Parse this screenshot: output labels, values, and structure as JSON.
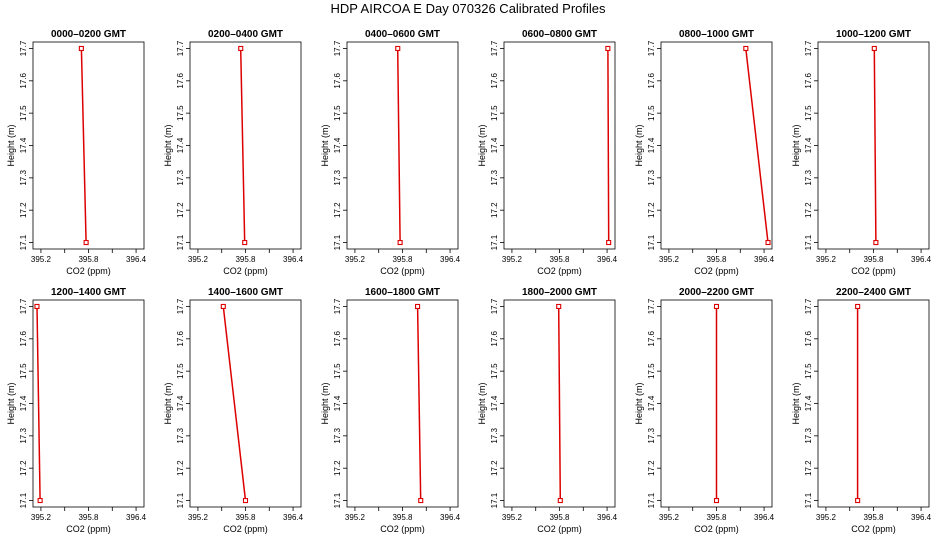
{
  "title": "HDP  AIRCOA E  Day 070326  Calibrated Profiles",
  "line_color": "#dd0000",
  "chart_data": [
    {
      "type": "line",
      "title": "0000–0200 GMT",
      "xlabel": "CO2 (ppm)",
      "ylabel": "Height (m)",
      "xlim": [
        395.1,
        396.5
      ],
      "ylim": [
        17.08,
        17.72
      ],
      "xticks": [
        395.2,
        395.8,
        396.4
      ],
      "yticks": [
        17.1,
        17.2,
        17.3,
        17.4,
        17.5,
        17.6,
        17.7
      ],
      "series": [
        {
          "x": [
            395.77,
            395.71
          ],
          "y": [
            17.1,
            17.7
          ]
        }
      ]
    },
    {
      "type": "line",
      "title": "0200–0400 GMT",
      "xlabel": "CO2 (ppm)",
      "ylabel": "Height (m)",
      "xlim": [
        395.1,
        396.5
      ],
      "ylim": [
        17.08,
        17.72
      ],
      "xticks": [
        395.2,
        395.8,
        396.4
      ],
      "yticks": [
        17.1,
        17.2,
        17.3,
        17.4,
        17.5,
        17.6,
        17.7
      ],
      "series": [
        {
          "x": [
            395.79,
            395.74
          ],
          "y": [
            17.1,
            17.7
          ]
        }
      ]
    },
    {
      "type": "line",
      "title": "0400–0600 GMT",
      "xlabel": "CO2 (ppm)",
      "ylabel": "Height (m)",
      "xlim": [
        395.1,
        396.5
      ],
      "ylim": [
        17.08,
        17.72
      ],
      "xticks": [
        395.2,
        395.8,
        396.4
      ],
      "yticks": [
        17.1,
        17.2,
        17.3,
        17.4,
        17.5,
        17.6,
        17.7
      ],
      "series": [
        {
          "x": [
            395.77,
            395.74
          ],
          "y": [
            17.1,
            17.7
          ]
        }
      ]
    },
    {
      "type": "line",
      "title": "0600–0800 GMT",
      "xlabel": "CO2 (ppm)",
      "ylabel": "Height (m)",
      "xlim": [
        395.1,
        396.5
      ],
      "ylim": [
        17.08,
        17.72
      ],
      "xticks": [
        395.2,
        395.8,
        396.4
      ],
      "yticks": [
        17.1,
        17.2,
        17.3,
        17.4,
        17.5,
        17.6,
        17.7
      ],
      "series": [
        {
          "x": [
            396.42,
            396.41
          ],
          "y": [
            17.1,
            17.7
          ]
        }
      ]
    },
    {
      "type": "line",
      "title": "0800–1000 GMT",
      "xlabel": "CO2 (ppm)",
      "ylabel": "Height (m)",
      "xlim": [
        395.1,
        396.5
      ],
      "ylim": [
        17.08,
        17.72
      ],
      "xticks": [
        395.2,
        395.8,
        396.4
      ],
      "yticks": [
        17.1,
        17.2,
        17.3,
        17.4,
        17.5,
        17.6,
        17.7
      ],
      "series": [
        {
          "x": [
            396.45,
            396.17
          ],
          "y": [
            17.1,
            17.7
          ]
        }
      ]
    },
    {
      "type": "line",
      "title": "1000–1200 GMT",
      "xlabel": "CO2 (ppm)",
      "ylabel": "Height (m)",
      "xlim": [
        395.1,
        396.5
      ],
      "ylim": [
        17.08,
        17.72
      ],
      "xticks": [
        395.2,
        395.8,
        396.4
      ],
      "yticks": [
        17.1,
        17.2,
        17.3,
        17.4,
        17.5,
        17.6,
        17.7
      ],
      "series": [
        {
          "x": [
            395.83,
            395.81
          ],
          "y": [
            17.1,
            17.7
          ]
        }
      ]
    },
    {
      "type": "line",
      "title": "1200–1400 GMT",
      "xlabel": "CO2 (ppm)",
      "ylabel": "Height (m)",
      "xlim": [
        395.1,
        396.5
      ],
      "ylim": [
        17.08,
        17.72
      ],
      "xticks": [
        395.2,
        395.8,
        396.4
      ],
      "yticks": [
        17.1,
        17.2,
        17.3,
        17.4,
        17.5,
        17.6,
        17.7
      ],
      "series": [
        {
          "x": [
            395.19,
            395.15
          ],
          "y": [
            17.1,
            17.7
          ]
        }
      ]
    },
    {
      "type": "line",
      "title": "1400–1600 GMT",
      "xlabel": "CO2 (ppm)",
      "ylabel": "Height (m)",
      "xlim": [
        395.1,
        396.5
      ],
      "ylim": [
        17.08,
        17.72
      ],
      "xticks": [
        395.2,
        395.8,
        396.4
      ],
      "yticks": [
        17.1,
        17.2,
        17.3,
        17.4,
        17.5,
        17.6,
        17.7
      ],
      "series": [
        {
          "x": [
            395.8,
            395.52
          ],
          "y": [
            17.1,
            17.7
          ]
        }
      ]
    },
    {
      "type": "line",
      "title": "1600–1800 GMT",
      "xlabel": "CO2 (ppm)",
      "ylabel": "Height (m)",
      "xlim": [
        395.1,
        396.5
      ],
      "ylim": [
        17.08,
        17.72
      ],
      "xticks": [
        395.2,
        395.8,
        396.4
      ],
      "yticks": [
        17.1,
        17.2,
        17.3,
        17.4,
        17.5,
        17.6,
        17.7
      ],
      "series": [
        {
          "x": [
            396.03,
            395.99
          ],
          "y": [
            17.1,
            17.7
          ]
        }
      ]
    },
    {
      "type": "line",
      "title": "1800–2000 GMT",
      "xlabel": "CO2 (ppm)",
      "ylabel": "Height (m)",
      "xlim": [
        395.1,
        396.5
      ],
      "ylim": [
        17.08,
        17.72
      ],
      "xticks": [
        395.2,
        395.8,
        396.4
      ],
      "yticks": [
        17.1,
        17.2,
        17.3,
        17.4,
        17.5,
        17.6,
        17.7
      ],
      "series": [
        {
          "x": [
            395.81,
            395.79
          ],
          "y": [
            17.1,
            17.7
          ]
        }
      ]
    },
    {
      "type": "line",
      "title": "2000–2200 GMT",
      "xlabel": "CO2 (ppm)",
      "ylabel": "Height (m)",
      "xlim": [
        395.1,
        396.5
      ],
      "ylim": [
        17.08,
        17.72
      ],
      "xticks": [
        395.2,
        395.8,
        396.4
      ],
      "yticks": [
        17.1,
        17.2,
        17.3,
        17.4,
        17.5,
        17.6,
        17.7
      ],
      "series": [
        {
          "x": [
            395.8,
            395.8
          ],
          "y": [
            17.1,
            17.7
          ]
        }
      ]
    },
    {
      "type": "line",
      "title": "2200–2400 GMT",
      "xlabel": "CO2 (ppm)",
      "ylabel": "Height (m)",
      "xlim": [
        395.1,
        396.5
      ],
      "ylim": [
        17.08,
        17.72
      ],
      "xticks": [
        395.2,
        395.8,
        396.4
      ],
      "yticks": [
        17.1,
        17.2,
        17.3,
        17.4,
        17.5,
        17.6,
        17.7
      ],
      "series": [
        {
          "x": [
            395.6,
            395.6
          ],
          "y": [
            17.1,
            17.7
          ]
        }
      ]
    }
  ]
}
